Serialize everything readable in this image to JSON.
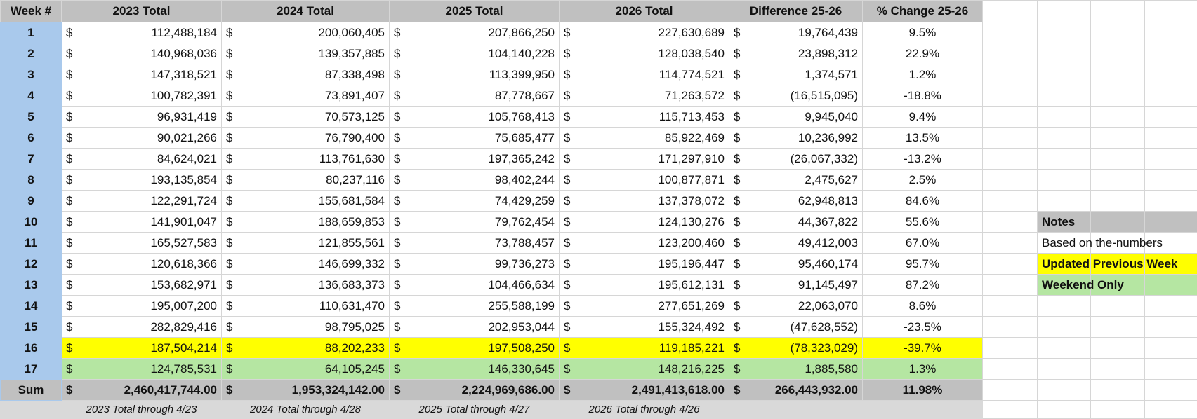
{
  "headers": [
    "Week #",
    "2023 Total",
    "2024 Total",
    "2025 Total",
    "2026 Total",
    "Difference 25-26",
    "% Change 25-26"
  ],
  "currency_symbol": "$",
  "rows": [
    {
      "week": "1",
      "y2023": "112,488,184",
      "y2024": "200,060,405",
      "y2025": "207,866,250",
      "y2026": "227,630,689",
      "diff": "19,764,439",
      "pct": "9.5%"
    },
    {
      "week": "2",
      "y2023": "140,968,036",
      "y2024": "139,357,885",
      "y2025": "104,140,228",
      "y2026": "128,038,540",
      "diff": "23,898,312",
      "pct": "22.9%"
    },
    {
      "week": "3",
      "y2023": "147,318,521",
      "y2024": "87,338,498",
      "y2025": "113,399,950",
      "y2026": "114,774,521",
      "diff": "1,374,571",
      "pct": "1.2%"
    },
    {
      "week": "4",
      "y2023": "100,782,391",
      "y2024": "73,891,407",
      "y2025": "87,778,667",
      "y2026": "71,263,572",
      "diff": "(16,515,095)",
      "pct": "-18.8%"
    },
    {
      "week": "5",
      "y2023": "96,931,419",
      "y2024": "70,573,125",
      "y2025": "105,768,413",
      "y2026": "115,713,453",
      "diff": "9,945,040",
      "pct": "9.4%"
    },
    {
      "week": "6",
      "y2023": "90,021,266",
      "y2024": "76,790,400",
      "y2025": "75,685,477",
      "y2026": "85,922,469",
      "diff": "10,236,992",
      "pct": "13.5%"
    },
    {
      "week": "7",
      "y2023": "84,624,021",
      "y2024": "113,761,630",
      "y2025": "197,365,242",
      "y2026": "171,297,910",
      "diff": "(26,067,332)",
      "pct": "-13.2%"
    },
    {
      "week": "8",
      "y2023": "193,135,854",
      "y2024": "80,237,116",
      "y2025": "98,402,244",
      "y2026": "100,877,871",
      "diff": "2,475,627",
      "pct": "2.5%"
    },
    {
      "week": "9",
      "y2023": "122,291,724",
      "y2024": "155,681,584",
      "y2025": "74,429,259",
      "y2026": "137,378,072",
      "diff": "62,948,813",
      "pct": "84.6%"
    },
    {
      "week": "10",
      "y2023": "141,901,047",
      "y2024": "188,659,853",
      "y2025": "79,762,454",
      "y2026": "124,130,276",
      "diff": "44,367,822",
      "pct": "55.6%"
    },
    {
      "week": "11",
      "y2023": "165,527,583",
      "y2024": "121,855,561",
      "y2025": "73,788,457",
      "y2026": "123,200,460",
      "diff": "49,412,003",
      "pct": "67.0%"
    },
    {
      "week": "12",
      "y2023": "120,618,366",
      "y2024": "146,699,332",
      "y2025": "99,736,273",
      "y2026": "195,196,447",
      "diff": "95,460,174",
      "pct": "95.7%"
    },
    {
      "week": "13",
      "y2023": "153,682,971",
      "y2024": "136,683,373",
      "y2025": "104,466,634",
      "y2026": "195,612,131",
      "diff": "91,145,497",
      "pct": "87.2%"
    },
    {
      "week": "14",
      "y2023": "195,007,200",
      "y2024": "110,631,470",
      "y2025": "255,588,199",
      "y2026": "277,651,269",
      "diff": "22,063,070",
      "pct": "8.6%"
    },
    {
      "week": "15",
      "y2023": "282,829,416",
      "y2024": "98,795,025",
      "y2025": "202,953,044",
      "y2026": "155,324,492",
      "diff": "(47,628,552)",
      "pct": "-23.5%"
    },
    {
      "week": "16",
      "y2023": "187,504,214",
      "y2024": "88,202,233",
      "y2025": "197,508,250",
      "y2026": "119,185,221",
      "diff": "(78,323,029)",
      "pct": "-39.7%",
      "highlight": "yellow"
    },
    {
      "week": "17",
      "y2023": "124,785,531",
      "y2024": "64,105,245",
      "y2025": "146,330,645",
      "y2026": "148,216,225",
      "diff": "1,885,580",
      "pct": "1.3%",
      "highlight": "green"
    }
  ],
  "sum": {
    "label": "Sum",
    "y2023": "2,460,417,744.00",
    "y2024": "1,953,324,142.00",
    "y2025": "2,224,969,686.00",
    "y2026": "2,491,413,618.00",
    "diff": "266,443,932.00",
    "pct": "11.98%"
  },
  "footnotes": [
    "2023 Total through 4/23",
    "2024 Total through 4/28",
    "2025 Total through 4/27",
    "2026 Total through 4/26"
  ],
  "notes": {
    "title": "Notes",
    "items": [
      {
        "text": "Based on the-numbers",
        "style": "plain"
      },
      {
        "text": "Updated Previous Week",
        "style": "yellow"
      },
      {
        "text": "Weekend Only",
        "style": "green"
      }
    ]
  },
  "colors": {
    "header": "#c0c0c0",
    "week_column": "#a9c9ec",
    "updated_previous_week": "#ffff00",
    "weekend_only": "#b5e6a2",
    "footer": "#d9d9d9"
  }
}
